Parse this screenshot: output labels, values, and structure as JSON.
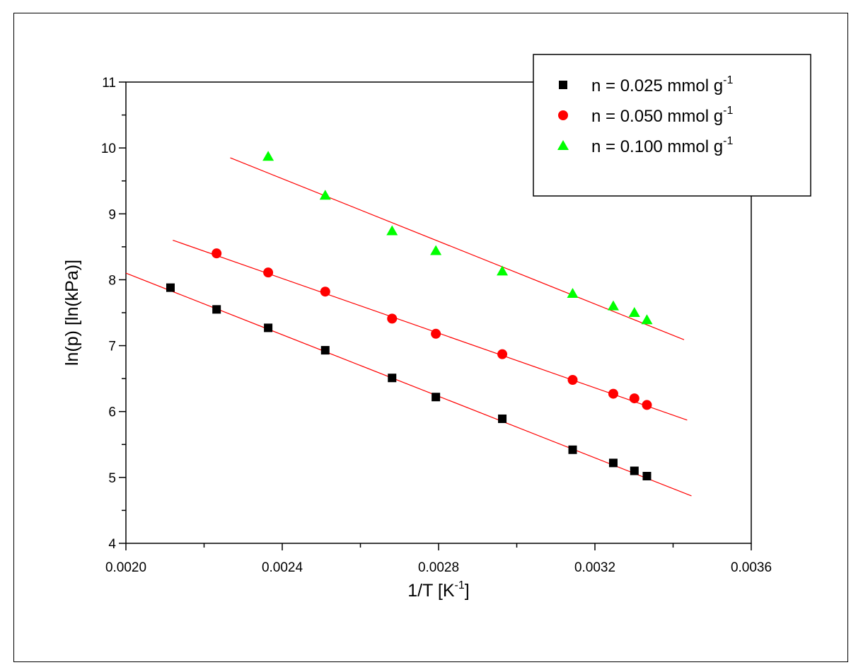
{
  "chart_data": {
    "type": "scatter",
    "xlabel": "1/T [K",
    "xlabel_sup": "-1",
    "xlabel_end": "]",
    "ylabel": "ln(p) [ln(kPa)]",
    "xlim": [
      0.002,
      0.0036
    ],
    "ylim": [
      4,
      11
    ],
    "x_ticks": [
      "0.0020",
      "0.0024",
      "0.0028",
      "0.0032",
      "0.0036"
    ],
    "y_ticks": [
      "4",
      "5",
      "6",
      "7",
      "8",
      "9",
      "10",
      "11"
    ],
    "legend_position": "top-right",
    "fit_color": "#ff0000",
    "series": [
      {
        "name": "n = 0.025 mmol g",
        "name_sup": "-1",
        "marker": "square",
        "color": "#000000",
        "x": [
          0.002114,
          0.002232,
          0.002364,
          0.00251,
          0.002681,
          0.002793,
          0.002963,
          0.003143,
          0.003247,
          0.003301,
          0.003333
        ],
        "y": [
          7.88,
          7.55,
          7.27,
          6.93,
          6.51,
          6.22,
          5.89,
          5.42,
          5.22,
          5.1,
          5.02
        ],
        "fit": {
          "x": [
            0.002,
            0.003447
          ],
          "y": [
            8.1,
            4.72
          ]
        }
      },
      {
        "name": "n = 0.050 mmol g",
        "name_sup": "-1",
        "marker": "circle",
        "color": "#ff0000",
        "x": [
          0.002232,
          0.002364,
          0.00251,
          0.002681,
          0.002793,
          0.002963,
          0.003143,
          0.003247,
          0.003301,
          0.003333
        ],
        "y": [
          8.4,
          8.11,
          7.82,
          7.41,
          7.18,
          6.87,
          6.48,
          6.27,
          6.2,
          6.1
        ],
        "fit": {
          "x": [
            0.00212,
            0.003436
          ],
          "y": [
            8.6,
            5.87
          ]
        }
      },
      {
        "name": "n = 0.100 mmol g",
        "name_sup": "-1",
        "marker": "triangle",
        "color": "#00ff00",
        "x": [
          0.002364,
          0.00251,
          0.002681,
          0.002793,
          0.002963,
          0.003143,
          0.003247,
          0.003301,
          0.003333
        ],
        "y": [
          9.87,
          9.28,
          8.74,
          8.44,
          8.13,
          7.79,
          7.6,
          7.5,
          7.39
        ],
        "fit": {
          "x": [
            0.002267,
            0.003428
          ],
          "y": [
            9.85,
            7.09
          ]
        }
      }
    ]
  }
}
